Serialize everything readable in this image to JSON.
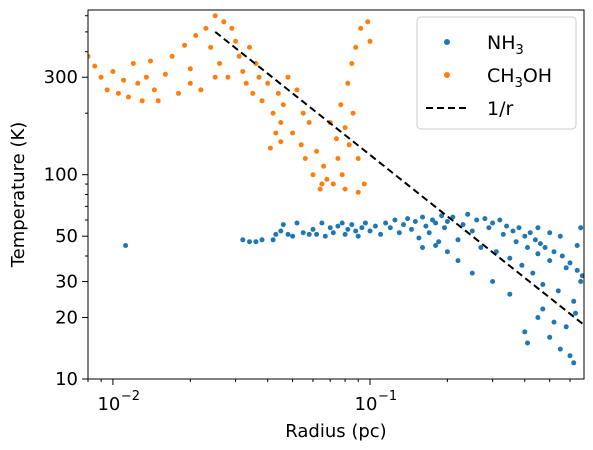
{
  "chart_data": {
    "type": "scatter",
    "title": "",
    "xlabel": "Radius (pc)",
    "ylabel": "Temperature (K)",
    "xscale": "log",
    "yscale": "log",
    "xlim": [
      0.008,
      0.68
    ],
    "ylim": [
      10,
      640
    ],
    "grid": false,
    "legend_position": "top-right",
    "x_ticks": [
      {
        "value": 0.01,
        "label": "10",
        "exp": "−2"
      },
      {
        "value": 0.1,
        "label": "10",
        "exp": "−1"
      }
    ],
    "y_ticks": [
      {
        "value": 10,
        "label": "10"
      },
      {
        "value": 20,
        "label": "20"
      },
      {
        "value": 30,
        "label": "30"
      },
      {
        "value": 50,
        "label": "50"
      },
      {
        "value": 100,
        "label": "100"
      },
      {
        "value": 300,
        "label": "300"
      }
    ],
    "series": [
      {
        "name": "NH3",
        "legend_base": "NH",
        "legend_sub": "3",
        "legend_tail": "",
        "color": "#1f77b4",
        "marker": "dot",
        "points": [
          [
            0.0112,
            45
          ],
          [
            0.032,
            48
          ],
          [
            0.034,
            47
          ],
          [
            0.036,
            47
          ],
          [
            0.038,
            48
          ],
          [
            0.042,
            48
          ],
          [
            0.043,
            51
          ],
          [
            0.045,
            53
          ],
          [
            0.046,
            57
          ],
          [
            0.048,
            51
          ],
          [
            0.05,
            50
          ],
          [
            0.052,
            58
          ],
          [
            0.055,
            52
          ],
          [
            0.058,
            51
          ],
          [
            0.06,
            54
          ],
          [
            0.062,
            51
          ],
          [
            0.065,
            58
          ],
          [
            0.067,
            50
          ],
          [
            0.07,
            55
          ],
          [
            0.072,
            52
          ],
          [
            0.075,
            56
          ],
          [
            0.078,
            58
          ],
          [
            0.08,
            51
          ],
          [
            0.082,
            54
          ],
          [
            0.085,
            57
          ],
          [
            0.088,
            53
          ],
          [
            0.09,
            50
          ],
          [
            0.093,
            55
          ],
          [
            0.096,
            58
          ],
          [
            0.1,
            53
          ],
          [
            0.105,
            56
          ],
          [
            0.11,
            51
          ],
          [
            0.115,
            58
          ],
          [
            0.12,
            55
          ],
          [
            0.125,
            60
          ],
          [
            0.13,
            52
          ],
          [
            0.135,
            57
          ],
          [
            0.14,
            61
          ],
          [
            0.145,
            54
          ],
          [
            0.15,
            59
          ],
          [
            0.155,
            49
          ],
          [
            0.16,
            62
          ],
          [
            0.165,
            56
          ],
          [
            0.17,
            52
          ],
          [
            0.175,
            60
          ],
          [
            0.18,
            58
          ],
          [
            0.185,
            47
          ],
          [
            0.19,
            63
          ],
          [
            0.195,
            55
          ],
          [
            0.2,
            59
          ],
          [
            0.21,
            62
          ],
          [
            0.22,
            48
          ],
          [
            0.23,
            57
          ],
          [
            0.24,
            64
          ],
          [
            0.25,
            53
          ],
          [
            0.26,
            60
          ],
          [
            0.27,
            44
          ],
          [
            0.28,
            61
          ],
          [
            0.29,
            55
          ],
          [
            0.3,
            58
          ],
          [
            0.31,
            42
          ],
          [
            0.32,
            60
          ],
          [
            0.33,
            51
          ],
          [
            0.34,
            56
          ],
          [
            0.35,
            39
          ],
          [
            0.36,
            53
          ],
          [
            0.37,
            47
          ],
          [
            0.38,
            55
          ],
          [
            0.39,
            36
          ],
          [
            0.4,
            50
          ],
          [
            0.41,
            44
          ],
          [
            0.42,
            52
          ],
          [
            0.43,
            33
          ],
          [
            0.44,
            48
          ],
          [
            0.45,
            41
          ],
          [
            0.46,
            46
          ],
          [
            0.47,
            29
          ],
          [
            0.48,
            44
          ],
          [
            0.5,
            38
          ],
          [
            0.52,
            42
          ],
          [
            0.54,
            27
          ],
          [
            0.56,
            40
          ],
          [
            0.58,
            35
          ],
          [
            0.6,
            37
          ],
          [
            0.62,
            24
          ],
          [
            0.64,
            34
          ],
          [
            0.66,
            30
          ],
          [
            0.67,
            32
          ],
          [
            0.5,
            16
          ],
          [
            0.55,
            14
          ],
          [
            0.6,
            13
          ],
          [
            0.62,
            12
          ],
          [
            0.4,
            17
          ],
          [
            0.41,
            15
          ],
          [
            0.45,
            20
          ],
          [
            0.47,
            22
          ],
          [
            0.52,
            19
          ],
          [
            0.58,
            18
          ],
          [
            0.63,
            21
          ],
          [
            0.35,
            26
          ],
          [
            0.25,
            33
          ],
          [
            0.3,
            30
          ],
          [
            0.22,
            38
          ],
          [
            0.2,
            42
          ],
          [
            0.18,
            45
          ],
          [
            0.16,
            44
          ],
          [
            0.66,
            55
          ],
          [
            0.64,
            45
          ],
          [
            0.55,
            50
          ],
          [
            0.5,
            52
          ],
          [
            0.45,
            55
          ]
        ]
      },
      {
        "name": "CH3OH",
        "legend_base": "CH",
        "legend_sub": "3",
        "legend_tail": "OH",
        "color": "#ff7f0e",
        "marker": "dot",
        "points": [
          [
            0.008,
            380
          ],
          [
            0.0085,
            340
          ],
          [
            0.009,
            300
          ],
          [
            0.0095,
            260
          ],
          [
            0.01,
            320
          ],
          [
            0.0105,
            250
          ],
          [
            0.011,
            290
          ],
          [
            0.0115,
            240
          ],
          [
            0.012,
            350
          ],
          [
            0.0125,
            280
          ],
          [
            0.013,
            230
          ],
          [
            0.0135,
            300
          ],
          [
            0.014,
            360
          ],
          [
            0.0145,
            260
          ],
          [
            0.015,
            230
          ],
          [
            0.016,
            310
          ],
          [
            0.017,
            380
          ],
          [
            0.018,
            250
          ],
          [
            0.019,
            430
          ],
          [
            0.02,
            330
          ],
          [
            0.021,
            480
          ],
          [
            0.022,
            260
          ],
          [
            0.023,
            520
          ],
          [
            0.024,
            420
          ],
          [
            0.025,
            600
          ],
          [
            0.026,
            350
          ],
          [
            0.027,
            560
          ],
          [
            0.028,
            300
          ],
          [
            0.029,
            520
          ],
          [
            0.03,
            450
          ],
          [
            0.031,
            380
          ],
          [
            0.032,
            320
          ],
          [
            0.033,
            280
          ],
          [
            0.034,
            420
          ],
          [
            0.035,
            250
          ],
          [
            0.036,
            350
          ],
          [
            0.037,
            300
          ],
          [
            0.038,
            230
          ],
          [
            0.04,
            280
          ],
          [
            0.042,
            200
          ],
          [
            0.044,
            250
          ],
          [
            0.045,
            180
          ],
          [
            0.046,
            220
          ],
          [
            0.048,
            300
          ],
          [
            0.05,
            160
          ],
          [
            0.052,
            260
          ],
          [
            0.054,
            140
          ],
          [
            0.055,
            200
          ],
          [
            0.056,
            120
          ],
          [
            0.058,
            180
          ],
          [
            0.06,
            100
          ],
          [
            0.062,
            130
          ],
          [
            0.064,
            85
          ],
          [
            0.066,
            110
          ],
          [
            0.068,
            95
          ],
          [
            0.07,
            180
          ],
          [
            0.072,
            90
          ],
          [
            0.074,
            150
          ],
          [
            0.075,
            120
          ],
          [
            0.077,
            220
          ],
          [
            0.078,
            100
          ],
          [
            0.08,
            170
          ],
          [
            0.082,
            280
          ],
          [
            0.083,
            140
          ],
          [
            0.085,
            350
          ],
          [
            0.086,
            200
          ],
          [
            0.088,
            420
          ],
          [
            0.09,
            120
          ],
          [
            0.092,
            520
          ],
          [
            0.095,
            90
          ],
          [
            0.098,
            560
          ],
          [
            0.1,
            450
          ],
          [
            0.041,
            135
          ],
          [
            0.043,
            160
          ],
          [
            0.045,
            145
          ],
          [
            0.065,
            90
          ],
          [
            0.08,
            85
          ],
          [
            0.09,
            82
          ],
          [
            0.025,
            300
          ],
          [
            0.02,
            280
          ]
        ]
      },
      {
        "name": "1/r",
        "legend_base": "1/r",
        "legend_sub": "",
        "legend_tail": "",
        "color": "#000000",
        "marker": "dashed-line",
        "points": [
          [
            0.025,
            500
          ],
          [
            0.68,
            18.4
          ]
        ]
      }
    ]
  }
}
